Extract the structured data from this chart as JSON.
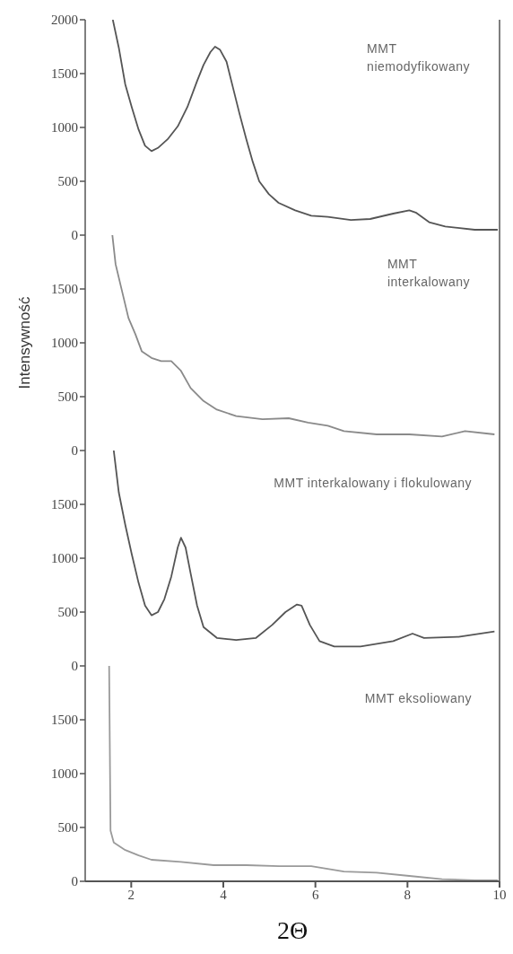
{
  "chart_data": [
    {
      "type": "line",
      "annotations": [
        "MMT\nniemodyfikowany"
      ],
      "xlim": [
        1,
        10
      ],
      "xticks": [
        2,
        4,
        6,
        8,
        10
      ],
      "ylim": [
        0,
        2000
      ],
      "yticks": [
        0,
        500,
        1000,
        1500,
        2000
      ],
      "tick_labels": "y",
      "grid": false,
      "legend": false,
      "marker": "none",
      "line_style": "solid",
      "series": [
        {
          "color": "#555555",
          "x": [
            1.6,
            1.73,
            1.87,
            2.01,
            2.16,
            2.3,
            2.44,
            2.58,
            2.79,
            3.01,
            3.22,
            3.43,
            3.57,
            3.72,
            3.82,
            3.93,
            4.07,
            4.21,
            4.35,
            4.5,
            4.64,
            4.78,
            4.99,
            5.2,
            5.56,
            5.91,
            6.27,
            6.77,
            7.19,
            7.69,
            8.04,
            8.18,
            8.47,
            8.82,
            9.46,
            9.96
          ],
          "values": [
            2000,
            1740,
            1400,
            1190,
            980,
            830,
            780,
            810,
            890,
            1010,
            1190,
            1430,
            1580,
            1700,
            1750,
            1720,
            1610,
            1370,
            1130,
            890,
            680,
            500,
            380,
            300,
            230,
            180,
            170,
            140,
            150,
            200,
            230,
            210,
            120,
            80,
            50,
            50
          ]
        }
      ]
    },
    {
      "type": "line",
      "ylabel": "Intensywność",
      "annotations": [
        "MMT\ninterkalowany"
      ],
      "xlim": [
        1,
        10
      ],
      "xticks": [
        2,
        4,
        6,
        8,
        10
      ],
      "ylim": [
        0,
        2000
      ],
      "yticks": [
        0,
        500,
        1000,
        1500
      ],
      "tick_labels": "y",
      "grid": false,
      "legend": false,
      "marker": "none",
      "line_style": "solid",
      "series": [
        {
          "color": "#8a8a8a",
          "x": [
            1.59,
            1.66,
            1.8,
            1.94,
            2.09,
            2.23,
            2.44,
            2.65,
            2.87,
            3.08,
            3.29,
            3.57,
            3.86,
            4.28,
            4.85,
            5.42,
            5.84,
            6.27,
            6.62,
            7.33,
            8.04,
            8.75,
            9.25,
            9.89
          ],
          "values": [
            2000,
            1730,
            1480,
            1230,
            1080,
            920,
            860,
            830,
            830,
            740,
            580,
            460,
            380,
            320,
            290,
            300,
            260,
            230,
            180,
            150,
            150,
            130,
            180,
            150
          ]
        }
      ]
    },
    {
      "type": "line",
      "annotations": [
        "MMT interkalowany i flokulowany"
      ],
      "xlim": [
        1,
        10
      ],
      "xticks": [
        2,
        4,
        6,
        8,
        10
      ],
      "ylim": [
        0,
        2000
      ],
      "yticks": [
        0,
        500,
        1000,
        1500
      ],
      "tick_labels": "y",
      "grid": false,
      "legend": false,
      "marker": "none",
      "line_style": "solid",
      "series": [
        {
          "color": "#555555",
          "x": [
            1.62,
            1.73,
            1.87,
            2.01,
            2.16,
            2.3,
            2.44,
            2.58,
            2.72,
            2.87,
            3.01,
            3.08,
            3.18,
            3.29,
            3.43,
            3.57,
            3.86,
            4.28,
            4.71,
            5.06,
            5.35,
            5.6,
            5.7,
            5.88,
            6.09,
            6.41,
            6.98,
            7.69,
            8.11,
            8.36,
            9.11,
            9.89
          ],
          "values": [
            2000,
            1610,
            1310,
            1040,
            770,
            560,
            470,
            500,
            620,
            830,
            1100,
            1190,
            1100,
            860,
            560,
            360,
            260,
            240,
            260,
            380,
            500,
            570,
            560,
            380,
            230,
            180,
            180,
            230,
            300,
            260,
            270,
            320
          ]
        }
      ]
    },
    {
      "type": "line",
      "xlabel": "2Θ",
      "annotations": [
        "MMT eksoliowany"
      ],
      "xlim": [
        1,
        10
      ],
      "xticks": [
        2,
        4,
        6,
        8,
        10
      ],
      "ylim": [
        0,
        2000
      ],
      "yticks": [
        0,
        500,
        1000,
        1500
      ],
      "grid": false,
      "legend": false,
      "marker": "none",
      "line_style": "solid",
      "series": [
        {
          "color": "#9a9a9a",
          "x": [
            1.52,
            1.55,
            1.62,
            1.87,
            2.16,
            2.44,
            3.08,
            3.79,
            4.5,
            5.21,
            5.91,
            6.62,
            7.33,
            8.04,
            8.75,
            9.46,
            9.96
          ],
          "values": [
            2000,
            470,
            360,
            290,
            240,
            200,
            180,
            150,
            150,
            140,
            140,
            90,
            80,
            50,
            20,
            10,
            10
          ]
        }
      ]
    }
  ]
}
